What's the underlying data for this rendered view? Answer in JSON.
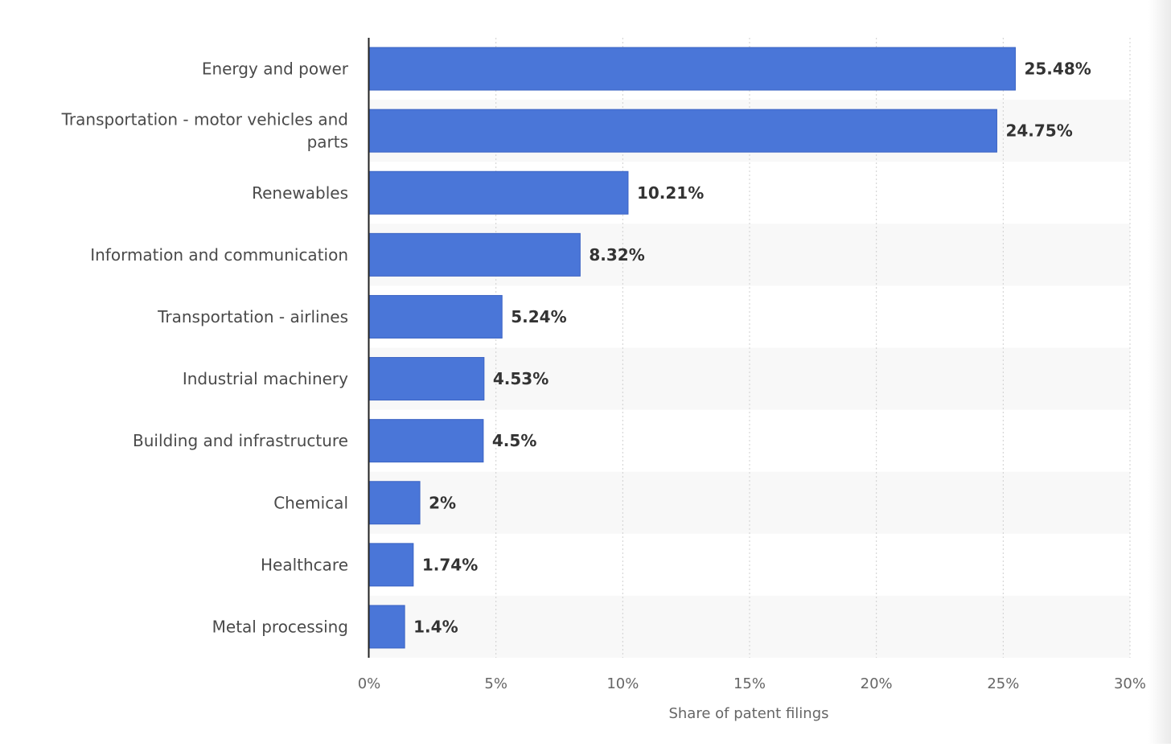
{
  "chart_data": {
    "type": "bar",
    "orientation": "horizontal",
    "categories": [
      "Energy and power",
      "Transportation - motor vehicles and parts",
      "Renewables",
      "Information and communication",
      "Transportation - airlines",
      "Industrial machinery",
      "Building and infrastructure",
      "Chemical",
      "Healthcare",
      "Metal processing"
    ],
    "category_lines": [
      [
        "Energy and power"
      ],
      [
        "Transportation - motor vehicles and",
        "parts"
      ],
      [
        "Renewables"
      ],
      [
        "Information and communication"
      ],
      [
        "Transportation - airlines"
      ],
      [
        "Industrial machinery"
      ],
      [
        "Building and infrastructure"
      ],
      [
        "Chemical"
      ],
      [
        "Healthcare"
      ],
      [
        "Metal processing"
      ]
    ],
    "values": [
      25.48,
      24.75,
      10.21,
      8.32,
      5.24,
      4.53,
      4.5,
      2,
      1.74,
      1.4
    ],
    "value_labels": [
      "25.48%",
      "24.75%",
      "10.21%",
      "8.32%",
      "5.24%",
      "4.53%",
      "4.5%",
      "2%",
      "1.74%",
      "1.4%"
    ],
    "xlabel": "Share of patent filings",
    "xlim": [
      0,
      30
    ],
    "xticks": [
      0,
      5,
      10,
      15,
      20,
      25,
      30
    ],
    "xtick_labels": [
      "0%",
      "5%",
      "10%",
      "15%",
      "20%",
      "25%",
      "30%"
    ],
    "grid": true,
    "legend": "none",
    "colors": {
      "bar": "#4a76d8",
      "bar_stroke": "#3b63c4",
      "band": "#f8f8f8",
      "grid": "#cfcfcf",
      "axis": "#222222"
    }
  }
}
